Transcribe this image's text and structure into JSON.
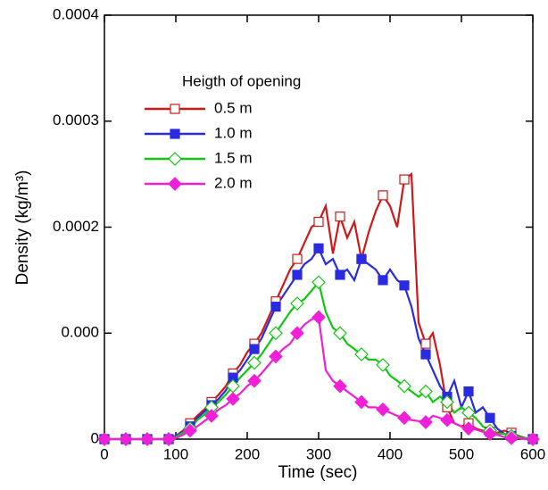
{
  "chart_data": {
    "type": "line",
    "x_label": "Time (sec)",
    "y_label": "Density (kg/m³)",
    "legend_title": "Heigth of opening",
    "legend": "upper left",
    "xlim": [
      0,
      600
    ],
    "ylim": [
      0,
      0.0004
    ],
    "xticks": [
      0,
      100,
      200,
      300,
      400,
      500,
      600
    ],
    "yticks": [
      0,
      {
        "value": 0.0001,
        "label": "0.000"
      },
      0.0002,
      0.0003,
      0.0004
    ],
    "x": [
      0,
      10,
      20,
      30,
      40,
      50,
      60,
      70,
      80,
      90,
      100,
      110,
      120,
      130,
      140,
      150,
      160,
      170,
      180,
      190,
      200,
      210,
      220,
      230,
      240,
      250,
      260,
      270,
      280,
      290,
      300,
      310,
      320,
      330,
      340,
      350,
      360,
      370,
      380,
      390,
      400,
      410,
      420,
      430,
      440,
      450,
      460,
      470,
      480,
      490,
      500,
      510,
      520,
      530,
      540,
      550,
      560,
      570,
      580,
      590,
      600
    ],
    "series": [
      {
        "name": "0.5 m",
        "color": "#d01818",
        "marker": "open-square",
        "values": [
          0,
          0,
          0,
          0,
          0,
          0,
          0,
          0,
          0,
          0,
          3e-06,
          8e-06,
          1.5e-05,
          2.2e-05,
          2.8e-05,
          3.5e-05,
          4.2e-05,
          5e-05,
          6.2e-05,
          7e-05,
          8.2e-05,
          9e-05,
          0.0001,
          0.000115,
          0.00013,
          0.000145,
          0.00016,
          0.00017,
          0.000185,
          0.0002,
          0.000205,
          0.00022,
          0.000175,
          0.00021,
          0.00019,
          0.000205,
          0.00017,
          0.000195,
          0.000215,
          0.00023,
          0.00022,
          0.0002,
          0.000245,
          0.00025,
          0.00011,
          9e-05,
          0.0001,
          7e-05,
          3e-05,
          1.5e-05,
          1.2e-05,
          1.5e-05,
          1e-05,
          8e-06,
          7e-06,
          6e-06,
          8e-06,
          6e-06,
          3e-06,
          1e-06,
          0
        ]
      },
      {
        "name": "1.0 m",
        "color": "#2a2ae0",
        "marker": "square",
        "values": [
          0,
          0,
          0,
          0,
          0,
          0,
          0,
          0,
          0,
          0,
          3e-06,
          7e-06,
          1.2e-05,
          2e-05,
          2.6e-05,
          3.2e-05,
          3.8e-05,
          4.6e-05,
          5.8e-05,
          6.5e-05,
          7.5e-05,
          8.5e-05,
          9.5e-05,
          0.00011,
          0.000125,
          0.000135,
          0.000145,
          0.000155,
          0.000165,
          0.00017,
          0.00018,
          0.000165,
          0.00017,
          0.000155,
          0.00016,
          0.00015,
          0.00017,
          0.000165,
          0.00016,
          0.00015,
          0.00016,
          0.00015,
          0.000145,
          0.000125,
          9.5e-05,
          8e-05,
          6.5e-05,
          5e-05,
          4e-05,
          5.5e-05,
          3e-05,
          4.5e-05,
          2.5e-05,
          3e-05,
          2e-05,
          1e-05,
          5e-06,
          3e-06,
          2e-06,
          1e-06,
          0
        ]
      },
      {
        "name": "1.5 m",
        "color": "#10c810",
        "marker": "open-diamond",
        "values": [
          0,
          0,
          0,
          0,
          0,
          0,
          0,
          0,
          0,
          0,
          2e-06,
          6e-06,
          1e-05,
          1.8e-05,
          2.3e-05,
          3e-05,
          3.5e-05,
          4.2e-05,
          5e-05,
          5.8e-05,
          6.5e-05,
          7.2e-05,
          8e-05,
          9e-05,
          0.0001,
          0.00011,
          0.00012,
          0.000128,
          0.000132,
          0.00014,
          0.000148,
          0.00012,
          0.000105,
          0.0001,
          9e-05,
          8.5e-05,
          8e-05,
          7.5e-05,
          7.5e-05,
          7e-05,
          6e-05,
          5.5e-05,
          5e-05,
          4.5e-05,
          4e-05,
          4.5e-05,
          3.5e-05,
          4e-05,
          3.5e-05,
          2.5e-05,
          3e-05,
          2.5e-05,
          2e-05,
          1.2e-05,
          8e-06,
          5e-06,
          5e-06,
          3e-06,
          2e-06,
          1e-06,
          0
        ]
      },
      {
        "name": "2.0 m",
        "color": "#f020d8",
        "marker": "diamond",
        "values": [
          0,
          0,
          0,
          0,
          0,
          0,
          0,
          0,
          0,
          0,
          1e-06,
          4e-06,
          8e-06,
          1.2e-05,
          1.7e-05,
          2.2e-05,
          2.8e-05,
          3.2e-05,
          3.8e-05,
          4.3e-05,
          5e-05,
          5.5e-05,
          6.2e-05,
          7e-05,
          7.8e-05,
          8.5e-05,
          9e-05,
          0.0001,
          0.000108,
          0.000113,
          0.000115,
          6.5e-05,
          5.5e-05,
          5e-05,
          4.5e-05,
          4e-05,
          3.5e-05,
          3e-05,
          3e-05,
          2.8e-05,
          2.5e-05,
          2.2e-05,
          2e-05,
          1.8e-05,
          1.7e-05,
          1.6e-05,
          2.2e-05,
          2e-05,
          1.8e-05,
          1.5e-05,
          1.2e-05,
          1e-05,
          9e-06,
          7e-06,
          5e-06,
          4e-06,
          2e-06,
          1e-06,
          1e-06,
          0,
          0
        ]
      }
    ]
  }
}
